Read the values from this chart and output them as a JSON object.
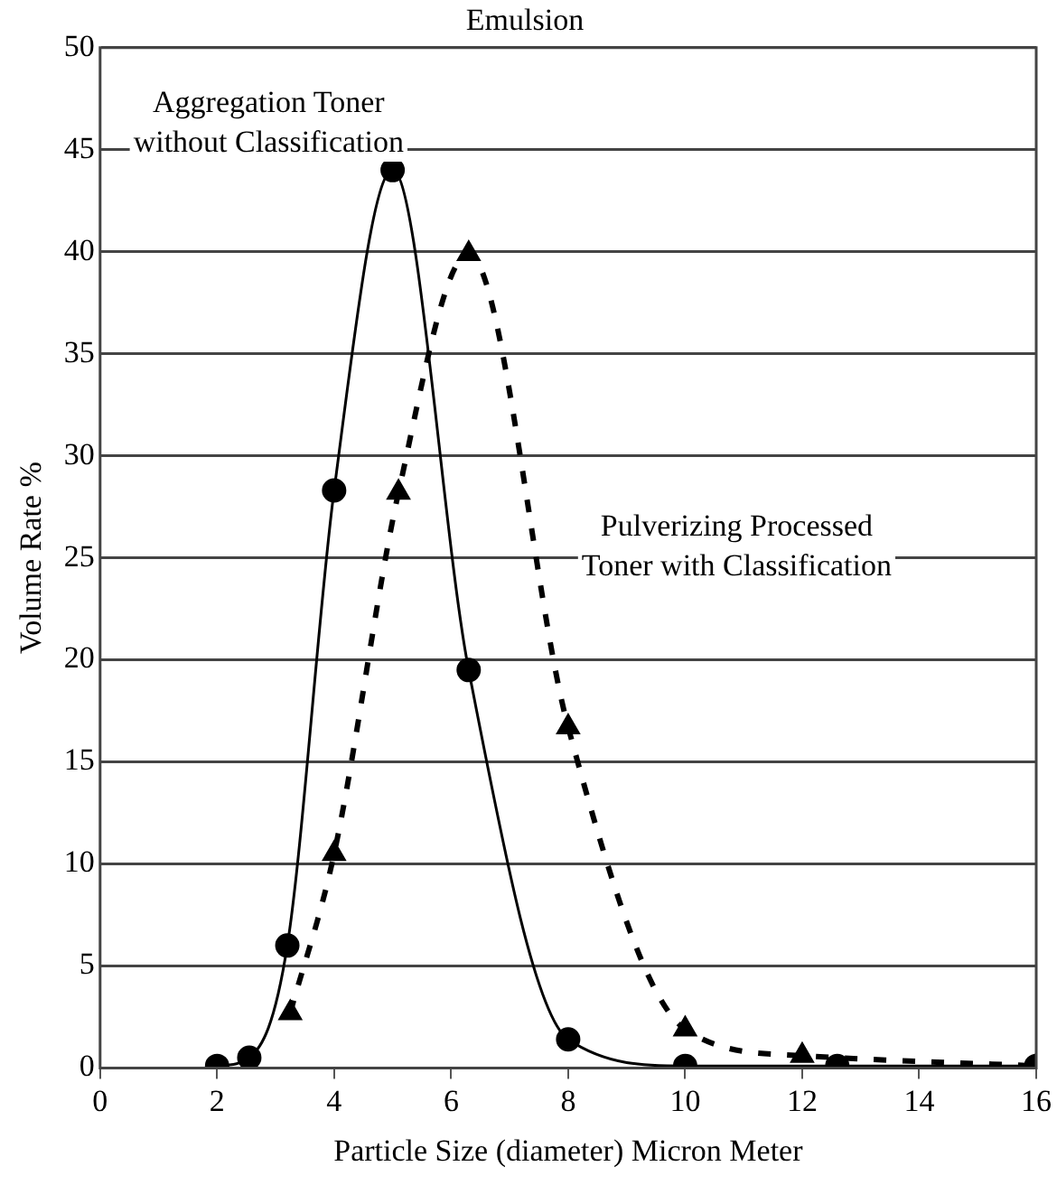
{
  "chart_data": {
    "type": "line",
    "title": "Emulsion",
    "xlabel": "Particle Size (diameter) Micron Meter",
    "ylabel": "Volume Rate %",
    "xlim": [
      0,
      16
    ],
    "xticks": [
      0,
      2,
      4,
      6,
      8,
      10,
      12,
      14,
      16
    ],
    "ylim": [
      0,
      50
    ],
    "yticks": [
      0,
      5,
      10,
      15,
      20,
      25,
      30,
      35,
      40,
      45,
      50
    ],
    "grid": "y",
    "legend": false,
    "series": [
      {
        "name": "Aggregation Toner without Classification",
        "color": "#000000",
        "marker": "circle",
        "line_style": "solid",
        "x": [
          2,
          2.55,
          3.2,
          4,
          5,
          6.3,
          8,
          10,
          12.6,
          16
        ],
        "values": [
          0.1,
          0.5,
          6,
          28.3,
          44,
          19.5,
          1.4,
          0.1,
          0.1,
          0.1
        ]
      },
      {
        "name": "Pulverizing Processed Toner with Classification",
        "color": "#000000",
        "marker": "triangle",
        "line_style": "dashed",
        "x": [
          3.25,
          4,
          5.1,
          6.3,
          8,
          10,
          12,
          16
        ],
        "values": [
          2.7,
          10.5,
          28.2,
          39.9,
          16.7,
          1.9,
          0.6,
          0.1
        ]
      }
    ]
  }
}
